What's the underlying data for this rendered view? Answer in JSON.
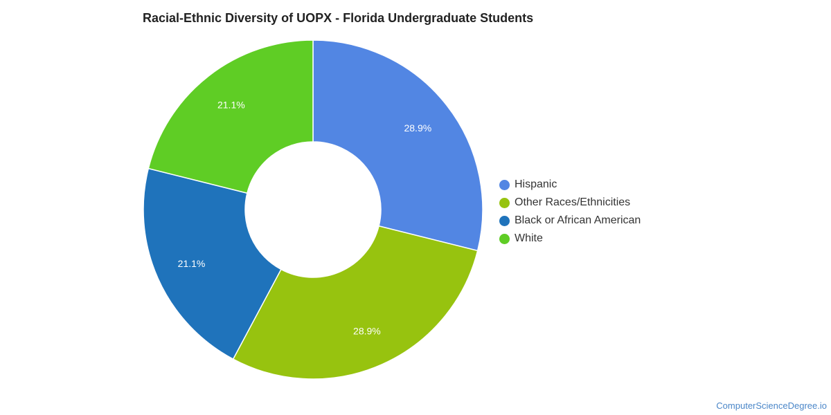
{
  "chart_data": {
    "type": "pie",
    "variant": "donut",
    "title": "Racial-Ethnic Diversity of UOPX - Florida Undergraduate Students",
    "categories": [
      "Hispanic",
      "Other Races/Ethnicities",
      "Black or African American",
      "White"
    ],
    "values": [
      28.9,
      28.9,
      21.1,
      21.1
    ],
    "labels": [
      "28.9%",
      "28.9%",
      "21.1%",
      "21.1%"
    ],
    "colors": [
      "#5286e3",
      "#97c30f",
      "#1f73bb",
      "#5fcd25"
    ],
    "legend_position": "right"
  },
  "footer": {
    "source": "ComputerScienceDegree.io"
  }
}
